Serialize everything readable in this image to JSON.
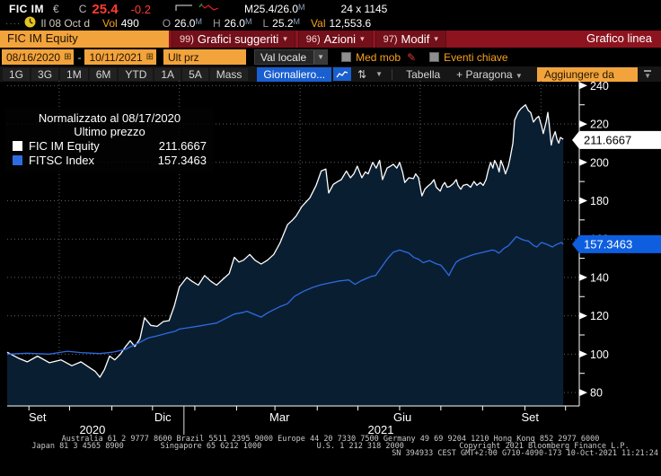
{
  "titlebar": {
    "ticker": "FIC IM",
    "currency": "€",
    "c_label": "C",
    "last_price": "25.4",
    "change": "-0.2",
    "market_quote": "M25.4/26.0",
    "quote_suffix": "M",
    "lot": "24 x 1145",
    "grip": "····",
    "session": "Il 08 Oct d",
    "vol_label": "Vol",
    "vol": "490",
    "o_label": "O",
    "o": "26.0",
    "h_label": "H",
    "h": "26.0",
    "l_label": "L",
    "l": "25.2",
    "ohl_suffix": "M",
    "val_label": "Val",
    "val": "12,553.6"
  },
  "menubar": {
    "ticker_field": "FIC IM Equity",
    "items": [
      {
        "num": "99)",
        "label": "Grafici suggeriti"
      },
      {
        "num": "96)",
        "label": "Azioni"
      },
      {
        "num": "97)",
        "label": "Modif"
      }
    ],
    "title": "Grafico linea"
  },
  "controls": {
    "date_from": "08/16/2020",
    "dash": "-",
    "date_to": "10/11/2021",
    "price_field": "Ult prz",
    "currency_select": "Val locale",
    "checkbox1": "Med mob",
    "checkbox2": "Eventi chiave"
  },
  "tabs": {
    "periods": [
      "1G",
      "3G",
      "1M",
      "6M",
      "YTD",
      "1A",
      "5A",
      "Mass"
    ],
    "frequency": "Giornaliero...",
    "table_label": "Tabella",
    "compare_label": "+ Paragona",
    "add_from": "Aggiungere da"
  },
  "colors": {
    "amber": "#f2a33c",
    "menu_red": "#8d141f",
    "blue_highlight": "#1a5fd0",
    "area_fill": "#0a1e32",
    "grid": "#5a6068",
    "white_line": "#ffffff",
    "blue_line": "#2e6be0",
    "tag_blue": "#0e5fe0",
    "negative_red": "#ff3b30"
  },
  "chart_data": {
    "type": "line",
    "title": "Normalizzato al 08/17/2020",
    "subtitle": "Ultimo prezzo",
    "x_range": [
      "08/16/2020",
      "10/11/2021"
    ],
    "ylim": [
      73,
      242.5
    ],
    "y_ticks": [
      80,
      100,
      120,
      140,
      160,
      180,
      200,
      220,
      240
    ],
    "y_minor_ticks": [
      90,
      110,
      130,
      150,
      170,
      190,
      210,
      230
    ],
    "grid": true,
    "legend_position": "top-left",
    "x_labels": [
      {
        "label": "Set",
        "pos": 0.053
      },
      {
        "label": "Dic",
        "pos": 0.272
      },
      {
        "label": "Mar",
        "pos": 0.476
      },
      {
        "label": "Giu",
        "pos": 0.691
      },
      {
        "label": "Set",
        "pos": 0.914
      }
    ],
    "year_labels": [
      {
        "label": "2020",
        "pos": 0.149
      },
      {
        "label": "2021",
        "pos": 0.653
      }
    ],
    "year_divider_pos": 0.309,
    "v_grid_pos": [
      0.091,
      0.301,
      0.512,
      0.722,
      0.933
    ],
    "month_tick_pos": [
      0.038,
      0.109,
      0.183,
      0.254,
      0.328,
      0.401,
      0.468,
      0.542,
      0.613,
      0.686,
      0.758,
      0.831,
      0.905,
      0.976
    ],
    "series": [
      {
        "name": "FIC IM Equity",
        "value": "211.6667",
        "color": "#ffffff",
        "fill": "#0a1e32",
        "points": [
          [
            0,
            101
          ],
          [
            0.019,
            98
          ],
          [
            0.035,
            96
          ],
          [
            0.053,
            99
          ],
          [
            0.074,
            95.5
          ],
          [
            0.094,
            97
          ],
          [
            0.113,
            94
          ],
          [
            0.129,
            96
          ],
          [
            0.144,
            93
          ],
          [
            0.154,
            91
          ],
          [
            0.162,
            88
          ],
          [
            0.17,
            92
          ],
          [
            0.179,
            99
          ],
          [
            0.188,
            97
          ],
          [
            0.198,
            100
          ],
          [
            0.207,
            104
          ],
          [
            0.215,
            107
          ],
          [
            0.223,
            104
          ],
          [
            0.232,
            108
          ],
          [
            0.24,
            119
          ],
          [
            0.251,
            115
          ],
          [
            0.262,
            114.5
          ],
          [
            0.273,
            117
          ],
          [
            0.283,
            117.5
          ],
          [
            0.292,
            125
          ],
          [
            0.301,
            135
          ],
          [
            0.314,
            140
          ],
          [
            0.323,
            138
          ],
          [
            0.334,
            136
          ],
          [
            0.345,
            141
          ],
          [
            0.356,
            138
          ],
          [
            0.366,
            136
          ],
          [
            0.377,
            139
          ],
          [
            0.388,
            142
          ],
          [
            0.397,
            150.5
          ],
          [
            0.405,
            148
          ],
          [
            0.413,
            149
          ],
          [
            0.424,
            152
          ],
          [
            0.433,
            149
          ],
          [
            0.444,
            147
          ],
          [
            0.455,
            149
          ],
          [
            0.466,
            152
          ],
          [
            0.477,
            158
          ],
          [
            0.49,
            167.5
          ],
          [
            0.499,
            170
          ],
          [
            0.505,
            172
          ],
          [
            0.515,
            177
          ],
          [
            0.529,
            181.5
          ],
          [
            0.54,
            188
          ],
          [
            0.549,
            195.5
          ],
          [
            0.557,
            196.5
          ],
          [
            0.562,
            184
          ],
          [
            0.57,
            188.5
          ],
          [
            0.578,
            190
          ],
          [
            0.584,
            191
          ],
          [
            0.593,
            195.5
          ],
          [
            0.6,
            192
          ],
          [
            0.606,
            194
          ],
          [
            0.612,
            198
          ],
          [
            0.62,
            192
          ],
          [
            0.626,
            195
          ],
          [
            0.631,
            194
          ],
          [
            0.639,
            200
          ],
          [
            0.645,
            197
          ],
          [
            0.651,
            201
          ],
          [
            0.656,
            191
          ],
          [
            0.664,
            197
          ],
          [
            0.67,
            198
          ],
          [
            0.675,
            199
          ],
          [
            0.681,
            197
          ],
          [
            0.686,
            200
          ],
          [
            0.691,
            195
          ],
          [
            0.695,
            189.5
          ],
          [
            0.702,
            192
          ],
          [
            0.71,
            191.5
          ],
          [
            0.714,
            194
          ],
          [
            0.719,
            192
          ],
          [
            0.725,
            182.5
          ],
          [
            0.73,
            186
          ],
          [
            0.735,
            187.5
          ],
          [
            0.741,
            189
          ],
          [
            0.746,
            191
          ],
          [
            0.75,
            187
          ],
          [
            0.757,
            185
          ],
          [
            0.761,
            188
          ],
          [
            0.765,
            189.5
          ],
          [
            0.769,
            187
          ],
          [
            0.774,
            187.5
          ],
          [
            0.78,
            189
          ],
          [
            0.785,
            191
          ],
          [
            0.788,
            188
          ],
          [
            0.793,
            186
          ],
          [
            0.797,
            188
          ],
          [
            0.804,
            188.5
          ],
          [
            0.81,
            187
          ],
          [
            0.816,
            190
          ],
          [
            0.821,
            188
          ],
          [
            0.827,
            189.5
          ],
          [
            0.832,
            188
          ],
          [
            0.837,
            191
          ],
          [
            0.841,
            196
          ],
          [
            0.845,
            200
          ],
          [
            0.849,
            197
          ],
          [
            0.852,
            201
          ],
          [
            0.857,
            198
          ],
          [
            0.86,
            195
          ],
          [
            0.863,
            201
          ],
          [
            0.867,
            198
          ],
          [
            0.871,
            194
          ],
          [
            0.876,
            198
          ],
          [
            0.879,
            202
          ],
          [
            0.884,
            210
          ],
          [
            0.887,
            222
          ],
          [
            0.893,
            226
          ],
          [
            0.898,
            228
          ],
          [
            0.906,
            230
          ],
          [
            0.911,
            227
          ],
          [
            0.915,
            226
          ],
          [
            0.92,
            221
          ],
          [
            0.925,
            223
          ],
          [
            0.929,
            224
          ],
          [
            0.934,
            219
          ],
          [
            0.937,
            215
          ],
          [
            0.942,
            221
          ],
          [
            0.945,
            226
          ],
          [
            0.948,
            218
          ],
          [
            0.951,
            209
          ],
          [
            0.954,
            213
          ],
          [
            0.958,
            216
          ],
          [
            0.961,
            212
          ],
          [
            0.964,
            210
          ],
          [
            0.967,
            213
          ],
          [
            0.972,
            212
          ]
        ]
      },
      {
        "name": "FITSC Index",
        "value": "157.3463",
        "color": "#2e6be0",
        "points": [
          [
            0,
            100
          ],
          [
            0.035,
            100.5
          ],
          [
            0.074,
            100
          ],
          [
            0.105,
            101.5
          ],
          [
            0.129,
            100.8
          ],
          [
            0.162,
            100.3
          ],
          [
            0.184,
            101
          ],
          [
            0.207,
            102.5
          ],
          [
            0.215,
            103.8
          ],
          [
            0.231,
            106
          ],
          [
            0.246,
            108.4
          ],
          [
            0.262,
            109.5
          ],
          [
            0.278,
            110.8
          ],
          [
            0.294,
            112
          ],
          [
            0.301,
            113.1
          ],
          [
            0.317,
            113.8
          ],
          [
            0.334,
            114.6
          ],
          [
            0.35,
            115.4
          ],
          [
            0.366,
            116.2
          ],
          [
            0.381,
            118.5
          ],
          [
            0.397,
            120.9
          ],
          [
            0.413,
            121.8
          ],
          [
            0.419,
            122.4
          ],
          [
            0.43,
            121
          ],
          [
            0.444,
            119.3
          ],
          [
            0.455,
            121.5
          ],
          [
            0.466,
            123.2
          ],
          [
            0.477,
            124.8
          ],
          [
            0.49,
            126.3
          ],
          [
            0.502,
            130.1
          ],
          [
            0.518,
            132.8
          ],
          [
            0.534,
            134.8
          ],
          [
            0.549,
            136.2
          ],
          [
            0.565,
            137.2
          ],
          [
            0.581,
            138.2
          ],
          [
            0.597,
            138.7
          ],
          [
            0.608,
            136.4
          ],
          [
            0.619,
            138.3
          ],
          [
            0.628,
            139.5
          ],
          [
            0.637,
            140.6
          ],
          [
            0.644,
            141
          ],
          [
            0.655,
            145.6
          ],
          [
            0.664,
            149.5
          ],
          [
            0.675,
            153.2
          ],
          [
            0.686,
            154.3
          ],
          [
            0.694,
            153.5
          ],
          [
            0.702,
            152.7
          ],
          [
            0.711,
            150.4
          ],
          [
            0.719,
            149.5
          ],
          [
            0.727,
            147.7
          ],
          [
            0.738,
            148.8
          ],
          [
            0.749,
            147.2
          ],
          [
            0.758,
            146.4
          ],
          [
            0.766,
            143.5
          ],
          [
            0.772,
            141
          ],
          [
            0.779,
            145
          ],
          [
            0.785,
            148
          ],
          [
            0.793,
            149.5
          ],
          [
            0.801,
            150.4
          ],
          [
            0.808,
            151.2
          ],
          [
            0.816,
            152
          ],
          [
            0.827,
            152.8
          ],
          [
            0.837,
            153.5
          ],
          [
            0.848,
            154.3
          ],
          [
            0.854,
            153.8
          ],
          [
            0.859,
            152.7
          ],
          [
            0.863,
            153.5
          ],
          [
            0.868,
            155.1
          ],
          [
            0.876,
            156.5
          ],
          [
            0.882,
            158.5
          ],
          [
            0.89,
            161.3
          ],
          [
            0.895,
            160.5
          ],
          [
            0.9,
            159.8
          ],
          [
            0.906,
            159.2
          ],
          [
            0.911,
            159
          ],
          [
            0.917,
            157.5
          ],
          [
            0.921,
            156.5
          ],
          [
            0.926,
            155.9
          ],
          [
            0.931,
            157.5
          ],
          [
            0.934,
            158.2
          ],
          [
            0.942,
            157.4
          ],
          [
            0.948,
            156.6
          ],
          [
            0.953,
            155.9
          ],
          [
            0.958,
            156.8
          ],
          [
            0.962,
            157.4
          ],
          [
            0.969,
            158.2
          ],
          [
            0.972,
            157.3
          ]
        ]
      }
    ],
    "price_tags": [
      {
        "value": "211.6667",
        "v": 211.6667,
        "bg": "#ffffff",
        "fg": "#000000"
      },
      {
        "value": "157.3463",
        "v": 157.3463,
        "bg": "#0e5fe0",
        "fg": "#ffffff"
      }
    ]
  },
  "footer": {
    "line1": "Australia 61 2 9777 8600 Brazil 5511 2395 9000 Europe 44 20 7330 7500 Germany 49 69 9204 1210 Hong Kong 852 2977 6000",
    "line2": "Japan 81 3 4565 8900        Singapore 65 6212 1000            U.S. 1 212 318 2000            Copyright 2021 Bloomberg Finance L.P.",
    "line3": "SN 394933 CEST GMT+2:00 G710-4090-173 10-Oct-2021 11:21:24"
  }
}
